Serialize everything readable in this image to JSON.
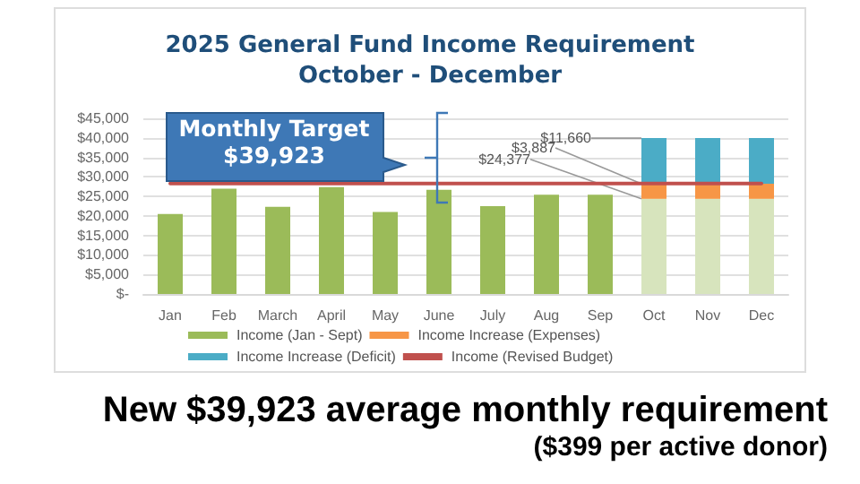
{
  "chart_data": {
    "type": "bar",
    "stacked": true,
    "title": "2025 General Fund Income Requirement\nOctober - December",
    "categories": [
      "Jan",
      "Feb",
      "March",
      "April",
      "May",
      "June",
      "July",
      "Aug",
      "Sep",
      "Oct",
      "Nov",
      "Dec"
    ],
    "series": [
      {
        "name": "Income (Jan - Sept)",
        "color": "#9bbb59",
        "colors": [
          "#9bbb59",
          "#9bbb59",
          "#9bbb59",
          "#9bbb59",
          "#9bbb59",
          "#9bbb59",
          "#9bbb59",
          "#9bbb59",
          "#9bbb59",
          "#d7e4bd",
          "#d7e4bd",
          "#d7e4bd"
        ],
        "values": [
          20500,
          27000,
          22300,
          27400,
          21000,
          26700,
          22500,
          25400,
          25400,
          24377,
          24377,
          24377
        ],
        "value_labels": [
          null,
          null,
          null,
          null,
          null,
          null,
          null,
          null,
          null,
          "$24,377",
          null,
          null
        ]
      },
      {
        "name": "Income Increase (Expenses)",
        "color": "#f79646",
        "values": [
          null,
          null,
          null,
          null,
          null,
          null,
          null,
          null,
          null,
          3887,
          3887,
          3887
        ],
        "value_labels": [
          null,
          null,
          null,
          null,
          null,
          null,
          null,
          null,
          null,
          "$3,887",
          null,
          null
        ]
      },
      {
        "name": "Income Increase (Deficit)",
        "color": "#4bacc6",
        "values": [
          null,
          null,
          null,
          null,
          null,
          null,
          null,
          null,
          null,
          11660,
          11660,
          11660
        ],
        "value_labels": [
          null,
          null,
          null,
          null,
          null,
          null,
          null,
          null,
          null,
          "$11,660",
          null,
          null
        ]
      },
      {
        "name": "Income (Revised Budget)",
        "type": "line",
        "color": "#c0504d",
        "values": [
          28300,
          28300,
          28300,
          28300,
          28300,
          28300,
          28300,
          28300,
          28300,
          28300,
          28300,
          28300
        ]
      }
    ],
    "ylim": [
      0,
      45000
    ],
    "yticks": [
      {
        "value": 0,
        "label": "$-"
      },
      {
        "value": 5000,
        "label": "$5,000"
      },
      {
        "value": 10000,
        "label": "$10,000"
      },
      {
        "value": 15000,
        "label": "$15,000"
      },
      {
        "value": 20000,
        "label": "$20,000"
      },
      {
        "value": 25000,
        "label": "$25,000"
      },
      {
        "value": 30000,
        "label": "$30,000"
      },
      {
        "value": 35000,
        "label": "$35,000"
      },
      {
        "value": 40000,
        "label": "$40,000"
      },
      {
        "value": 45000,
        "label": "$45,000"
      }
    ],
    "grid": "y",
    "legend": "bottom",
    "marker": "none",
    "annotations": [
      "Monthly Target $39,923",
      "New $39,923 average monthly requirement",
      "($399 per active donor)"
    ]
  }
}
